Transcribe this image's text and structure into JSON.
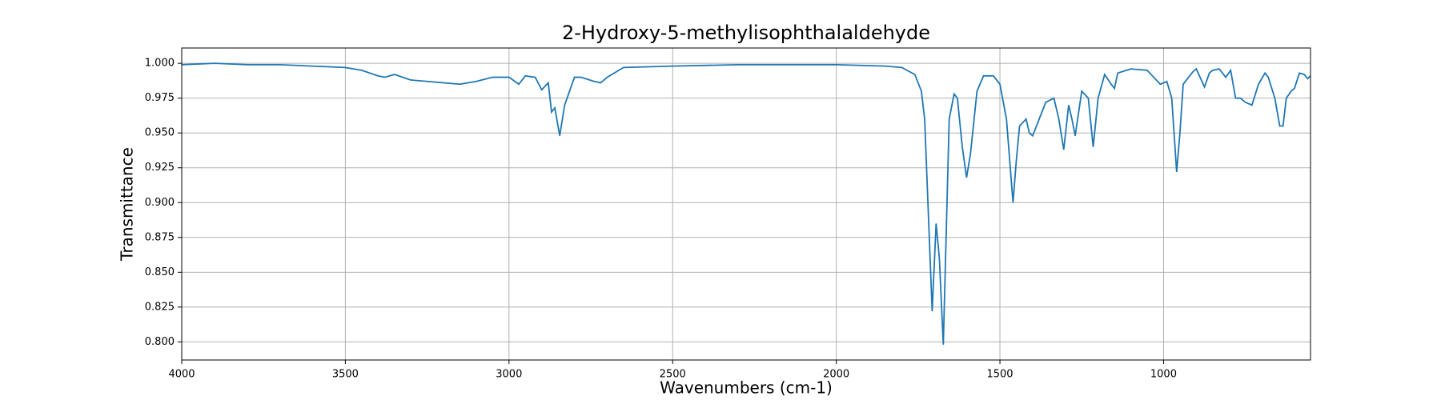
{
  "chart_data": {
    "type": "line",
    "title": "2-Hydroxy-5-methylisophthalaldehyde",
    "x_label": "Wavenumbers (cm-1)",
    "y_label": "Transmittance",
    "x": [
      4000,
      3900,
      3800,
      3700,
      3600,
      3500,
      3450,
      3400,
      3380,
      3350,
      3300,
      3250,
      3200,
      3150,
      3100,
      3050,
      3000,
      2970,
      2950,
      2920,
      2900,
      2880,
      2870,
      2860,
      2845,
      2830,
      2800,
      2780,
      2740,
      2720,
      2700,
      2650,
      2500,
      2300,
      2000,
      1850,
      1800,
      1760,
      1740,
      1730,
      1720,
      1707,
      1695,
      1685,
      1673,
      1665,
      1655,
      1640,
      1630,
      1615,
      1602,
      1590,
      1570,
      1550,
      1520,
      1500,
      1480,
      1470,
      1460,
      1450,
      1440,
      1420,
      1410,
      1400,
      1380,
      1360,
      1335,
      1320,
      1305,
      1290,
      1280,
      1270,
      1250,
      1230,
      1215,
      1200,
      1180,
      1160,
      1150,
      1140,
      1100,
      1050,
      1030,
      1010,
      990,
      975,
      960,
      950,
      940,
      910,
      900,
      875,
      860,
      850,
      830,
      810,
      795,
      780,
      765,
      750,
      730,
      710,
      690,
      680,
      660,
      645,
      635,
      625,
      610,
      600,
      585,
      570,
      560,
      551
    ],
    "series": [
      {
        "name": "Transmittance",
        "color": "#1f77b4",
        "values": [
          0.999,
          1.0,
          0.999,
          0.999,
          0.998,
          0.997,
          0.995,
          0.991,
          0.99,
          0.992,
          0.988,
          0.987,
          0.986,
          0.985,
          0.987,
          0.99,
          0.99,
          0.985,
          0.991,
          0.99,
          0.981,
          0.986,
          0.965,
          0.968,
          0.948,
          0.97,
          0.99,
          0.99,
          0.987,
          0.986,
          0.99,
          0.997,
          0.998,
          0.999,
          0.999,
          0.998,
          0.997,
          0.992,
          0.98,
          0.96,
          0.9,
          0.822,
          0.885,
          0.86,
          0.798,
          0.87,
          0.96,
          0.978,
          0.975,
          0.94,
          0.918,
          0.935,
          0.98,
          0.991,
          0.991,
          0.985,
          0.96,
          0.93,
          0.9,
          0.93,
          0.955,
          0.96,
          0.95,
          0.948,
          0.96,
          0.972,
          0.975,
          0.96,
          0.938,
          0.97,
          0.96,
          0.948,
          0.98,
          0.975,
          0.94,
          0.975,
          0.992,
          0.985,
          0.982,
          0.993,
          0.996,
          0.995,
          0.99,
          0.985,
          0.987,
          0.975,
          0.922,
          0.95,
          0.985,
          0.994,
          0.996,
          0.983,
          0.993,
          0.995,
          0.996,
          0.99,
          0.995,
          0.975,
          0.975,
          0.972,
          0.97,
          0.985,
          0.993,
          0.99,
          0.975,
          0.955,
          0.955,
          0.975,
          0.98,
          0.982,
          0.993,
          0.992,
          0.989,
          0.991
        ]
      }
    ],
    "xlim": [
      4000,
      551
    ],
    "xticks": [
      4000,
      3500,
      3000,
      2500,
      2000,
      1500,
      1000
    ],
    "ylim": [
      0.787,
      1.011
    ],
    "yticks": [
      {
        "value": 0.8,
        "label": "0.800"
      },
      {
        "value": 0.825,
        "label": "0.825"
      },
      {
        "value": 0.85,
        "label": "0.850"
      },
      {
        "value": 0.875,
        "label": "0.875"
      },
      {
        "value": 0.9,
        "label": "0.900"
      },
      {
        "value": 0.925,
        "label": "0.925"
      },
      {
        "value": 0.95,
        "label": "0.950"
      },
      {
        "value": 0.975,
        "label": "0.975"
      },
      {
        "value": 1,
        "label": "1.000"
      }
    ],
    "grid": true
  }
}
